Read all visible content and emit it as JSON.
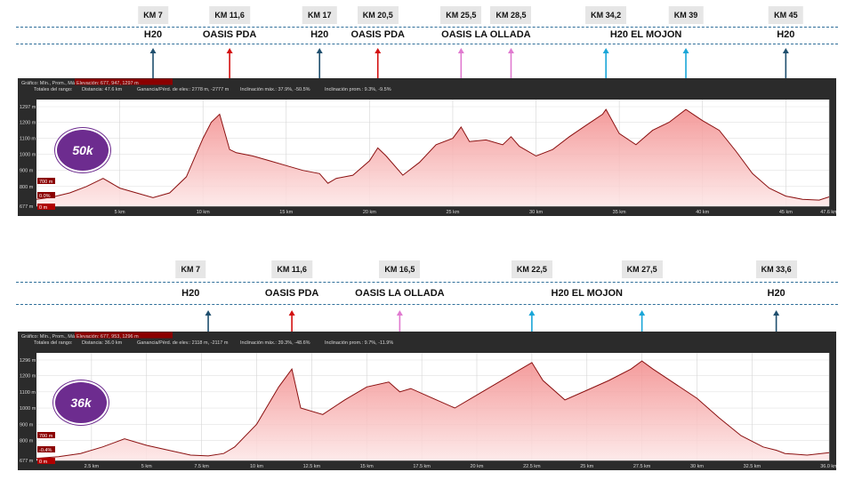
{
  "colors": {
    "h2o": "#1f4f6e",
    "oasis_pda": "#d31010",
    "ollada": "#e07ad0",
    "mojon": "#1aa6d8",
    "fill": "#f6b6b6",
    "line": "#8a1010",
    "panel": "#2b2b2b",
    "badge": "#6d2c8f"
  },
  "race_50k": {
    "badge": "50k",
    "km_markers": [
      {
        "label": "KM 7",
        "km": 7
      },
      {
        "label": "KM 11,6",
        "km": 11.6
      },
      {
        "label": "KM 17",
        "km": 17
      },
      {
        "label": "KM 20,5",
        "km": 20.5
      },
      {
        "label": "KM 25,5",
        "km": 25.5
      },
      {
        "label": "KM 28,5",
        "km": 28.5
      },
      {
        "label": "KM 34,2",
        "km": 34.2
      },
      {
        "label": "KM 39",
        "km": 39
      },
      {
        "label": "KM 45",
        "km": 45
      }
    ],
    "stations": [
      {
        "label": "H20",
        "km": 7
      },
      {
        "label": "OASIS PDA",
        "km": 11.6
      },
      {
        "label": "H20",
        "km": 17
      },
      {
        "label": "OASIS PDA",
        "km": 20.5
      },
      {
        "label": "OASIS LA OLLADA",
        "km": 27
      },
      {
        "label": "H20 EL MOJON",
        "km": 36.6
      },
      {
        "label": "H20",
        "km": 45
      }
    ],
    "arrows": [
      {
        "km": 7,
        "color": "h2o"
      },
      {
        "km": 11.6,
        "color": "oasis_pda"
      },
      {
        "km": 17,
        "color": "h2o"
      },
      {
        "km": 20.5,
        "color": "oasis_pda"
      },
      {
        "km": 25.5,
        "color": "ollada"
      },
      {
        "km": 28.5,
        "color": "ollada"
      },
      {
        "km": 34.2,
        "color": "mojon"
      },
      {
        "km": 39,
        "color": "mojon"
      },
      {
        "km": 45,
        "color": "h2o"
      }
    ],
    "info_line1": "Gráfico: Mín., Prom., Máx.:",
    "info_line1_value": "Elevación: 677, 947, 1297 m",
    "info_line2_label": "Totales del rango:",
    "info_dist": "Distancia: 47.6 km",
    "info_gain": "Ganancia/Pérd. de elev.: 2778 m, -2777 m",
    "info_incl_max": "Inclinación máx.: 37.9%, -50.5%",
    "info_incl_prom": "Inclinación prom.: 9.3%, -9.5%",
    "ytick_labels": [
      "1297 m",
      "1200 m",
      "1100 m",
      "1000 m",
      "900 m",
      "800 m",
      "677 m"
    ],
    "range_min_label": "700 m",
    "range_grade_label": "0.0%",
    "range_zero_label": "0 m",
    "xtick_labels": [
      "5 km",
      "10 km",
      "15 km",
      "20 km",
      "25 km",
      "30 km",
      "35 km",
      "40 km",
      "45 km",
      "47.6 km"
    ]
  },
  "race_36k": {
    "badge": "36k",
    "km_markers": [
      {
        "label": "KM 7",
        "km": 7
      },
      {
        "label": "KM 11,6",
        "km": 11.6
      },
      {
        "label": "KM 16,5",
        "km": 16.5
      },
      {
        "label": "KM 22,5",
        "km": 22.5
      },
      {
        "label": "KM 27,5",
        "km": 27.5
      },
      {
        "label": "KM 33,6",
        "km": 33.6
      }
    ],
    "stations": [
      {
        "label": "H20",
        "km": 7
      },
      {
        "label": "OASIS PDA",
        "km": 11.6
      },
      {
        "label": "OASIS LA OLLADA",
        "km": 16.5
      },
      {
        "label": "H20 EL MOJON",
        "km": 25
      },
      {
        "label": "H20",
        "km": 33.6
      }
    ],
    "arrows": [
      {
        "km": 7.8,
        "color": "h2o"
      },
      {
        "km": 11.6,
        "color": "oasis_pda"
      },
      {
        "km": 16.5,
        "color": "ollada"
      },
      {
        "km": 22.5,
        "color": "mojon"
      },
      {
        "km": 27.5,
        "color": "mojon"
      },
      {
        "km": 33.6,
        "color": "h2o"
      }
    ],
    "info_line1": "Gráfico: Mín., Prom., Máx.:",
    "info_line1_value": "Elevación: 677, 953, 1296 m",
    "info_line2_label": "Totales del rango:",
    "info_dist": "Distancia: 36.0 km",
    "info_gain": "Ganancia/Pérd. de elev.: 2118 m, -2117 m",
    "info_incl_max": "Inclinación máx.: 39.3%, -48.6%",
    "info_incl_prom": "Inclinación prom.: 9.7%, -11.9%",
    "ytick_labels": [
      "1296 m",
      "1200 m",
      "1100 m",
      "1000 m",
      "900 m",
      "800 m",
      "677 m"
    ],
    "range_min_label": "700 m",
    "range_grade_label": "-0.4%",
    "range_zero_label": "0 m",
    "xtick_labels": [
      "2.5 km",
      "5 km",
      "7.5 km",
      "10 km",
      "12.5 km",
      "15 km",
      "17.5 km",
      "20 km",
      "22.5 km",
      "25 km",
      "27.5 km",
      "30 km",
      "32.5 km",
      "36.0 km"
    ]
  },
  "chart_data": [
    {
      "type": "area",
      "xlim": [
        0,
        47.6
      ],
      "ylim": [
        677,
        1297
      ],
      "x": [
        0,
        1,
        2,
        3,
        4,
        5,
        6,
        7,
        8,
        9,
        9.5,
        10,
        10.5,
        11,
        11.6,
        12,
        13,
        14,
        15,
        16,
        17,
        17.5,
        18,
        19,
        20,
        20.5,
        21,
        22,
        23,
        24,
        25,
        25.5,
        26,
        27,
        28,
        28.5,
        29,
        30,
        31,
        32,
        33,
        34,
        34.2,
        35,
        36,
        37,
        38,
        39,
        40,
        41,
        42,
        43,
        44,
        45,
        46,
        47,
        47.6
      ],
      "y": [
        720,
        735,
        760,
        800,
        850,
        790,
        760,
        730,
        760,
        860,
        980,
        1100,
        1200,
        1250,
        1030,
        1010,
        990,
        960,
        930,
        900,
        880,
        820,
        850,
        870,
        960,
        1040,
        990,
        870,
        950,
        1060,
        1100,
        1170,
        1080,
        1090,
        1060,
        1110,
        1050,
        990,
        1030,
        1110,
        1180,
        1250,
        1280,
        1130,
        1060,
        1150,
        1200,
        1280,
        1210,
        1150,
        1020,
        880,
        790,
        740,
        720,
        715,
        735
      ]
    },
    {
      "type": "area",
      "xlim": [
        0,
        36.0
      ],
      "ylim": [
        677,
        1296
      ],
      "x": [
        0,
        1,
        2,
        3,
        4,
        5,
        6,
        7,
        7.8,
        8.5,
        9,
        10,
        11,
        11.6,
        12,
        13,
        14,
        15,
        16,
        16.5,
        17,
        18,
        19,
        20,
        21,
        22,
        22.5,
        23,
        24,
        25,
        26,
        27,
        27.5,
        28,
        29,
        30,
        31,
        32,
        33,
        33.6,
        34,
        35,
        36
      ],
      "y": [
        690,
        700,
        720,
        760,
        810,
        770,
        740,
        710,
        705,
        720,
        760,
        900,
        1130,
        1240,
        1000,
        960,
        1050,
        1130,
        1160,
        1100,
        1120,
        1060,
        1000,
        1080,
        1160,
        1240,
        1280,
        1170,
        1050,
        1110,
        1170,
        1240,
        1290,
        1240,
        1150,
        1060,
        940,
        830,
        760,
        740,
        720,
        710,
        725
      ]
    }
  ]
}
